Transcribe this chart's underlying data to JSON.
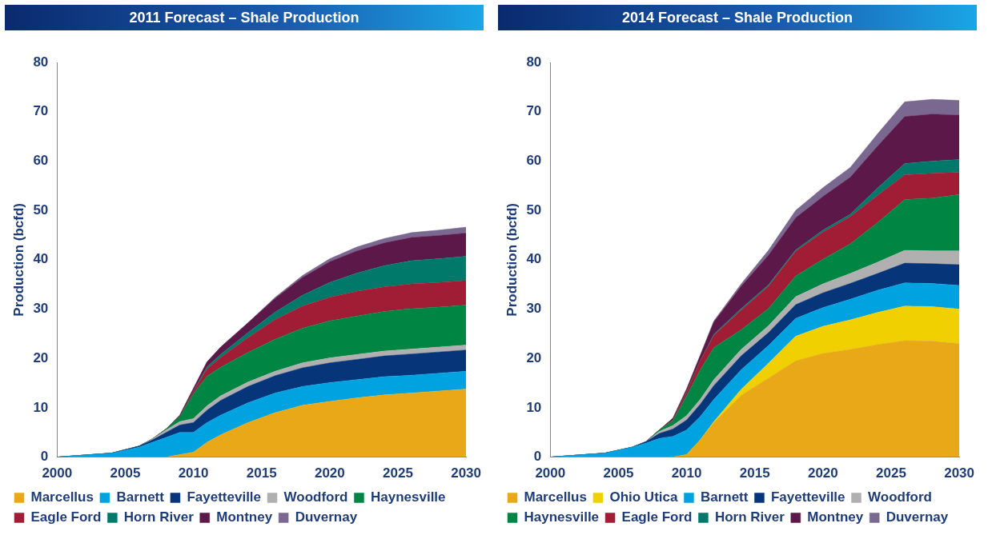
{
  "chart_data": [
    {
      "type": "area",
      "title": "2011 Forecast – Shale Production",
      "ylabel": "Production (bcfd)",
      "stacked": true,
      "grid": false,
      "legend": "bottom",
      "xlim": [
        2000,
        2030
      ],
      "xticks": [
        2000,
        2005,
        2010,
        2015,
        2020,
        2025,
        2030
      ],
      "ylim": [
        0,
        80
      ],
      "yticks": [
        0,
        10,
        20,
        30,
        40,
        50,
        60,
        70,
        80
      ],
      "x": [
        2000,
        2004,
        2006,
        2007,
        2008,
        2009,
        2010,
        2011,
        2012,
        2014,
        2016,
        2018,
        2020,
        2022,
        2024,
        2026,
        2028,
        2030
      ],
      "series": [
        {
          "name": "Marcellus",
          "color": "#e8a817",
          "values": [
            0,
            0,
            0,
            0,
            0,
            0.5,
            1,
            3,
            4.5,
            7,
            9,
            10.5,
            11.3,
            12,
            12.6,
            13,
            13.4,
            13.8
          ]
        },
        {
          "name": "Barnett",
          "color": "#00a3e0",
          "values": [
            0,
            0.8,
            2,
            3,
            4,
            4.5,
            4,
            4,
            4,
            4,
            4,
            3.8,
            3.8,
            3.7,
            3.7,
            3.6,
            3.6,
            3.6
          ]
        },
        {
          "name": "Fayetteville",
          "color": "#06357a",
          "values": [
            0,
            0,
            0.2,
            0.5,
            1,
            1.5,
            2,
            2.5,
            3,
            3.3,
            3.5,
            3.8,
            4,
            4.1,
            4.2,
            4.3,
            4.3,
            4.3
          ]
        },
        {
          "name": "Woodford",
          "color": "#b0b0b0",
          "values": [
            0,
            0,
            0,
            0.2,
            0.5,
            0.7,
            0.8,
            0.9,
            0.9,
            0.9,
            0.9,
            1,
            1,
            1,
            1,
            1,
            1,
            1
          ]
        },
        {
          "name": "Haynesville",
          "color": "#008542",
          "values": [
            0,
            0,
            0,
            0,
            0.2,
            1,
            5,
            6,
            5.8,
            6,
            6.5,
            7,
            7.5,
            7.8,
            8,
            8.2,
            8.1,
            8.1
          ]
        },
        {
          "name": "Eagle Ford",
          "color": "#a11d35",
          "values": [
            0,
            0,
            0,
            0,
            0,
            0,
            0.5,
            1.5,
            2,
            3,
            4,
            4.5,
            4.8,
            5,
            5,
            5,
            5,
            5
          ]
        },
        {
          "name": "Horn River",
          "color": "#00796b",
          "values": [
            0,
            0,
            0,
            0,
            0,
            0,
            0.1,
            0.4,
            0.6,
            1,
            1.5,
            2.2,
            3,
            3.7,
            4.3,
            4.7,
            4.8,
            4.9
          ]
        },
        {
          "name": "Montney",
          "color": "#5c1848",
          "values": [
            0,
            0,
            0,
            0,
            0,
            0.3,
            0.5,
            1,
            1.5,
            2,
            2.8,
            3.6,
            4.2,
            4.5,
            4.6,
            4.7,
            4.7,
            4.7
          ]
        },
        {
          "name": "Duvernay",
          "color": "#7a6890",
          "values": [
            0,
            0,
            0,
            0,
            0,
            0,
            0,
            0,
            0,
            0,
            0.2,
            0.4,
            0.6,
            0.8,
            0.9,
            1,
            1.1,
            1.2
          ]
        }
      ]
    },
    {
      "type": "area",
      "title": "2014 Forecast – Shale Production",
      "ylabel": "Production (bcfd)",
      "stacked": true,
      "grid": false,
      "legend": "bottom",
      "xlim": [
        2000,
        2030
      ],
      "xticks": [
        2000,
        2005,
        2010,
        2015,
        2020,
        2025,
        2030
      ],
      "ylim": [
        0,
        80
      ],
      "yticks": [
        0,
        10,
        20,
        30,
        40,
        50,
        60,
        70,
        80
      ],
      "x": [
        2000,
        2004,
        2006,
        2007,
        2008,
        2009,
        2010,
        2011,
        2012,
        2014,
        2016,
        2018,
        2020,
        2022,
        2024,
        2026,
        2028,
        2030
      ],
      "series": [
        {
          "name": "Marcellus",
          "color": "#e8a817",
          "values": [
            0,
            0,
            0,
            0,
            0,
            0,
            0.5,
            3.5,
            7,
            12.5,
            16,
            19.5,
            21,
            21.8,
            22.8,
            23.6,
            23.5,
            23
          ]
        },
        {
          "name": "Ohio Utica",
          "color": "#f0d000",
          "values": [
            0,
            0,
            0,
            0,
            0,
            0,
            0,
            0,
            0.2,
            1.2,
            3,
            5,
            5.5,
            6,
            6.5,
            7,
            7,
            7
          ]
        },
        {
          "name": "Barnett",
          "color": "#00a3e0",
          "values": [
            0,
            0.8,
            2,
            2.8,
            3.8,
            4.2,
            5,
            4.7,
            4.5,
            4,
            3.6,
            3.6,
            3.8,
            4.2,
            4.5,
            4.7,
            4.7,
            4.8
          ]
        },
        {
          "name": "Fayetteville",
          "color": "#06357a",
          "values": [
            0,
            0,
            0,
            0.3,
            1,
            1.5,
            2,
            2.5,
            2.8,
            2.8,
            2.6,
            2.8,
            3,
            3.2,
            3.4,
            4,
            4,
            4.2
          ]
        },
        {
          "name": "Woodford",
          "color": "#b0b0b0",
          "values": [
            0,
            0,
            0,
            0,
            0.4,
            0.7,
            0.9,
            1,
            1.2,
            1.3,
            1.4,
            1.6,
            1.8,
            2,
            2.3,
            2.6,
            2.6,
            2.8
          ]
        },
        {
          "name": "Haynesville",
          "color": "#008542",
          "values": [
            0,
            0,
            0,
            0,
            0.3,
            1,
            4,
            6,
            6.5,
            4,
            3.5,
            4.2,
            5,
            6,
            8,
            10.3,
            10.7,
            11.4
          ]
        },
        {
          "name": "Eagle Ford",
          "color": "#a11d35",
          "values": [
            0,
            0,
            0,
            0,
            0,
            0.2,
            0.8,
            1.8,
            2.5,
            4,
            4.5,
            5,
            5.5,
            5.5,
            5.5,
            5,
            5,
            4.5
          ]
        },
        {
          "name": "Horn River",
          "color": "#00796b",
          "values": [
            0,
            0,
            0,
            0,
            0,
            0,
            0.1,
            0.1,
            0.2,
            0.3,
            0.3,
            0.3,
            0.4,
            0.5,
            1.5,
            2.3,
            2.5,
            2.6
          ]
        },
        {
          "name": "Montney",
          "color": "#5c1848",
          "values": [
            0,
            0,
            0,
            0,
            0,
            0.3,
            0.5,
            1,
            2.5,
            4.5,
            6,
            6.5,
            6.8,
            7.5,
            8.5,
            9.5,
            9.5,
            9
          ]
        },
        {
          "name": "Duvernay",
          "color": "#7a6890",
          "values": [
            0,
            0,
            0,
            0,
            0,
            0,
            0,
            0,
            0.2,
            0.5,
            1,
            1.5,
            1.8,
            2,
            2.5,
            3,
            3,
            3
          ]
        }
      ]
    }
  ]
}
